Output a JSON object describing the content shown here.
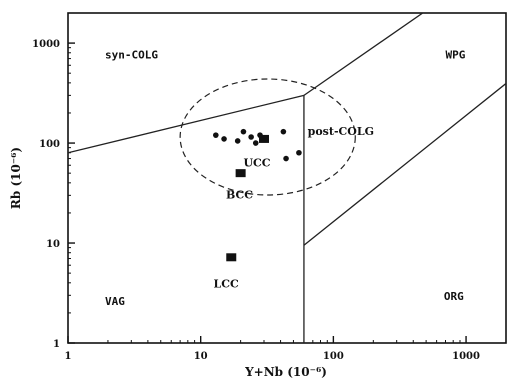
{
  "chart_data": {
    "type": "scatter",
    "title": "",
    "xlabel": "Y+Nb (10⁻⁶)",
    "ylabel": "Rb (10⁻⁶)",
    "xscale": "log",
    "yscale": "log",
    "xlim": [
      1,
      2000
    ],
    "ylim": [
      1,
      2000
    ],
    "x_ticks": [
      {
        "value": 1,
        "label": "1"
      },
      {
        "value": 10,
        "label": "10"
      },
      {
        "value": 100,
        "label": "100"
      },
      {
        "value": 1000,
        "label": "1000"
      }
    ],
    "y_ticks": [
      {
        "value": 1,
        "label": "1"
      },
      {
        "value": 10,
        "label": "10"
      },
      {
        "value": 100,
        "label": "100"
      },
      {
        "value": 1000,
        "label": "1000"
      }
    ],
    "grid": false,
    "legend": "none",
    "boundaries": [
      {
        "name": "vag-syncolg",
        "points": [
          [
            1,
            80
          ],
          [
            60,
            300
          ]
        ]
      },
      {
        "name": "vertical",
        "points": [
          [
            60,
            1
          ],
          [
            60,
            300
          ]
        ]
      },
      {
        "name": "wpg-upper",
        "points": [
          [
            60,
            300
          ],
          [
            1000,
            4000
          ]
        ]
      },
      {
        "name": "wpg-org",
        "points": [
          [
            60,
            9.5
          ],
          [
            2500,
            500
          ]
        ]
      }
    ],
    "ellipse": {
      "center": [
        32,
        115
      ],
      "semi_axes_log": [
        0.66,
        0.58
      ],
      "style": "dashed"
    },
    "series": [
      {
        "marker": "circle",
        "points": [
          [
            13,
            120
          ],
          [
            15,
            110
          ],
          [
            21,
            130
          ],
          [
            24,
            115
          ],
          [
            26,
            100
          ],
          [
            42,
            130
          ],
          [
            44,
            70
          ],
          [
            55,
            80
          ],
          [
            19,
            105
          ],
          [
            28,
            120
          ]
        ]
      },
      {
        "marker": "square",
        "points": [
          [
            30,
            110
          ],
          [
            20,
            50
          ],
          [
            17,
            7.2
          ]
        ]
      }
    ],
    "field_labels": [
      {
        "text": "syn-COLG",
        "x": 1.9,
        "y": 700
      },
      {
        "text": "WPG",
        "x": 700,
        "y": 700
      },
      {
        "text": "VAG",
        "x": 1.9,
        "y": 2.4
      },
      {
        "text": "ORG",
        "x": 680,
        "y": 2.7
      }
    ],
    "annotations": [
      {
        "text": "post-COLG",
        "x": 64,
        "y": 120
      },
      {
        "text": "UCC",
        "x": 21,
        "y": 58
      },
      {
        "text": "BCC",
        "x": 15.5,
        "y": 28
      },
      {
        "text": "LCC",
        "x": 12.5,
        "y": 3.6
      }
    ]
  }
}
